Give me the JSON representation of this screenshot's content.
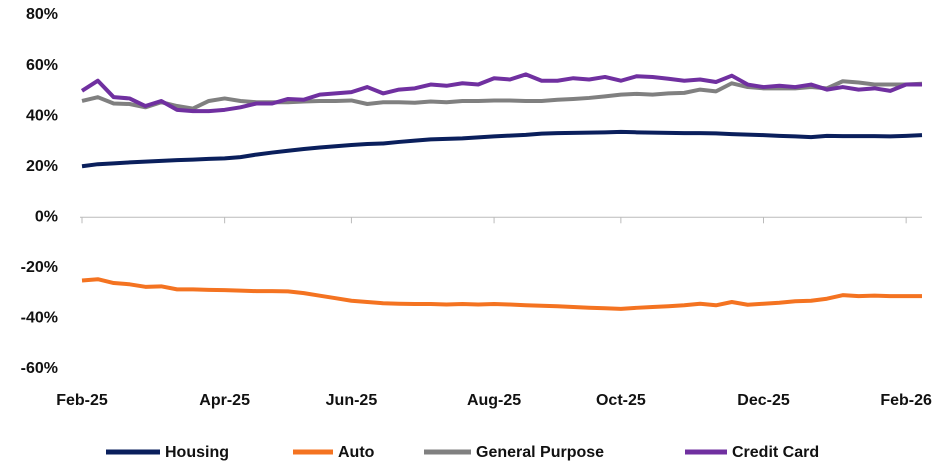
{
  "chart_data": {
    "type": "line",
    "categories": [
      "Feb-25",
      null,
      null,
      null,
      null,
      null,
      null,
      null,
      null,
      "Apr-25",
      null,
      null,
      null,
      null,
      null,
      null,
      null,
      "Jun-25",
      null,
      null,
      null,
      null,
      null,
      null,
      null,
      null,
      "Aug-25",
      null,
      null,
      null,
      null,
      null,
      null,
      null,
      "Oct-25",
      null,
      null,
      null,
      null,
      null,
      null,
      null,
      null,
      "Dec-25",
      null,
      null,
      null,
      null,
      null,
      null,
      null,
      null,
      "Feb-26",
      null
    ],
    "series": [
      {
        "name": "Housing",
        "color": "#0a1f5c",
        "values": [
          20.2,
          21,
          21.3,
          21.7,
          22,
          22.3,
          22.6,
          22.8,
          23.1,
          23.3,
          23.8,
          24.8,
          25.6,
          26.3,
          27,
          27.6,
          28.1,
          28.6,
          29,
          29.2,
          29.8,
          30.3,
          30.8,
          31,
          31.2,
          31.6,
          32,
          32.3,
          32.6,
          33.1,
          33.3,
          33.4,
          33.5,
          33.6,
          33.8,
          33.6,
          33.5,
          33.4,
          33.3,
          33.3,
          33.2,
          32.9,
          32.7,
          32.5,
          32.2,
          32,
          31.7,
          32.2,
          32.1,
          32.1,
          32.1,
          32,
          32.2,
          32.5
        ]
      },
      {
        "name": "Auto",
        "color": "#f47321",
        "values": [
          -25,
          -24.5,
          -26,
          -26.5,
          -27.5,
          -27.3,
          -28.5,
          -28.5,
          -28.7,
          -28.8,
          -29,
          -29.2,
          -29.2,
          -29.3,
          -30,
          -31,
          -32,
          -33,
          -33.5,
          -34,
          -34.2,
          -34.3,
          -34.3,
          -34.5,
          -34.3,
          -34.5,
          -34.3,
          -34.5,
          -34.8,
          -35,
          -35.2,
          -35.5,
          -35.8,
          -36,
          -36.2,
          -35.8,
          -35.5,
          -35.2,
          -34.8,
          -34.2,
          -34.8,
          -33.5,
          -34.6,
          -34.2,
          -33.8,
          -33.2,
          -33,
          -32.2,
          -30.8,
          -31.2,
          -31,
          -31.2,
          -31.2,
          -31.2
        ]
      },
      {
        "name": "General Purpose",
        "color": "#808080",
        "values": [
          46,
          47.5,
          45,
          44.8,
          43.5,
          45.5,
          44,
          43,
          46,
          47,
          46,
          45.5,
          45.5,
          45.5,
          45.8,
          46,
          46,
          46.2,
          44.8,
          45.5,
          45.5,
          45.3,
          45.8,
          45.5,
          46,
          46,
          46.2,
          46.2,
          46,
          46,
          46.5,
          46.8,
          47.2,
          47.8,
          48.5,
          48.8,
          48.5,
          49,
          49.2,
          50.5,
          49.8,
          53,
          51.5,
          51,
          51,
          51,
          51.5,
          51,
          53.8,
          53.3,
          52.5,
          52.5,
          52.5,
          52.8
        ]
      },
      {
        "name": "Credit Card",
        "color": "#7030a0",
        "values": [
          50,
          54,
          47.5,
          47,
          44,
          46,
          42.5,
          42,
          42,
          42.5,
          43.5,
          45,
          45,
          46.8,
          46.5,
          48.5,
          49,
          49.5,
          51.5,
          49,
          50.5,
          51,
          52.5,
          52,
          53,
          52.5,
          55,
          54.5,
          56.5,
          54,
          54,
          55,
          54.5,
          55.5,
          54,
          55.8,
          55.5,
          54.8,
          54,
          54.5,
          53.5,
          56,
          52.5,
          51.5,
          52,
          51.5,
          52.5,
          50.5,
          51.5,
          50.5,
          51,
          50,
          52.5,
          52.5
        ]
      }
    ],
    "ylim": [
      -60,
      80
    ],
    "yticks": [
      {
        "value": -60,
        "label": "-60%"
      },
      {
        "value": -40,
        "label": "-40%"
      },
      {
        "value": -20,
        "label": "-20%"
      },
      {
        "value": 0,
        "label": "0%"
      },
      {
        "value": 20,
        "label": "20%"
      },
      {
        "value": 40,
        "label": "40%"
      },
      {
        "value": 60,
        "label": "60%"
      },
      {
        "value": 80,
        "label": "80%"
      }
    ],
    "grid": false,
    "legend": "bottom"
  }
}
